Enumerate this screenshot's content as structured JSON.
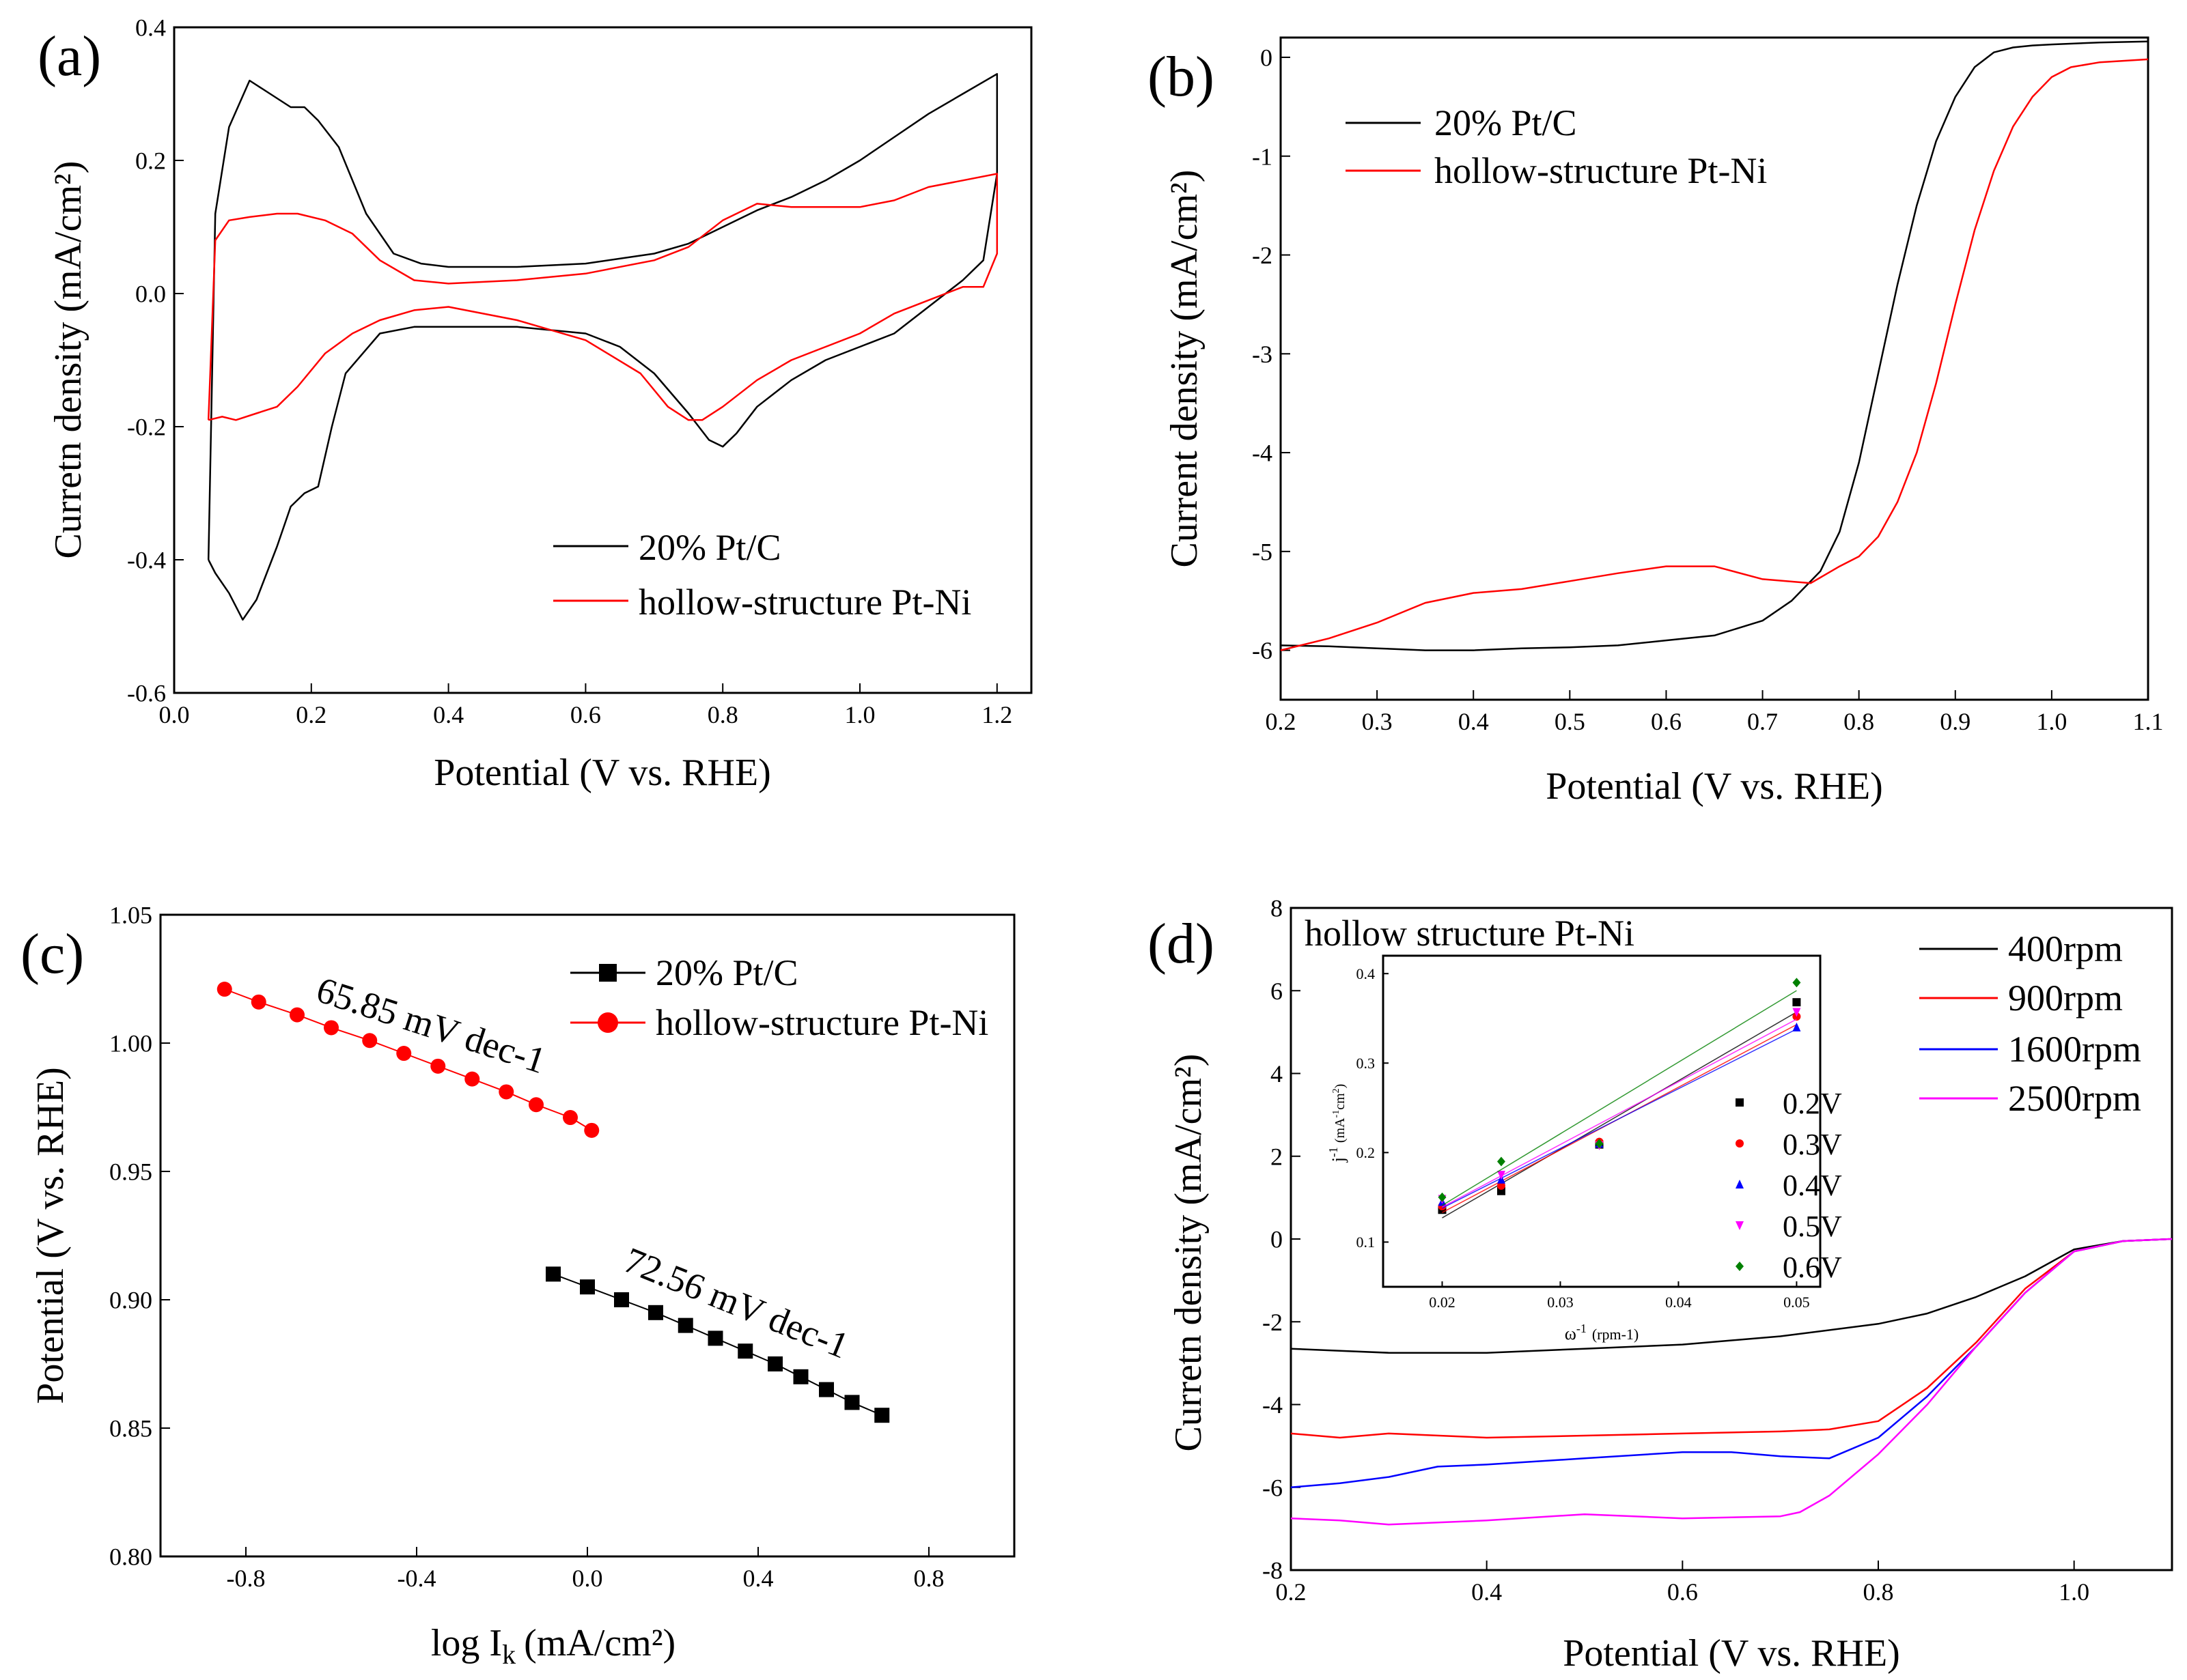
{
  "chart_data": [
    {
      "id": "a",
      "type": "line",
      "panel_label": "(a)",
      "xlabel": "Potential (V vs. RHE)",
      "ylabel": "Curretn density (mA/cm²)",
      "xlim": [
        0.0,
        1.25
      ],
      "ylim": [
        -0.6,
        0.4
      ],
      "xticks": [
        "0.0",
        "0.2",
        "0.4",
        "0.6",
        "0.8",
        "1.0",
        "1.2"
      ],
      "yticks": [
        "-0.6",
        "-0.4",
        "-0.2",
        "0.0",
        "0.2",
        "0.4"
      ],
      "legend": [
        "20% Pt/C",
        "hollow-structure Pt-Ni"
      ],
      "series": [
        {
          "name": "20% Pt/C",
          "color": "#000000",
          "x": [
            0.05,
            0.06,
            0.08,
            0.11,
            0.14,
            0.17,
            0.19,
            0.21,
            0.24,
            0.28,
            0.32,
            0.36,
            0.4,
            0.5,
            0.6,
            0.7,
            0.75,
            0.8,
            0.85,
            0.9,
            0.95,
            1.0,
            1.05,
            1.1,
            1.15,
            1.2,
            1.2,
            1.18,
            1.15,
            1.1,
            1.05,
            1.0,
            0.95,
            0.9,
            0.85,
            0.82,
            0.8,
            0.78,
            0.75,
            0.7,
            0.65,
            0.6,
            0.5,
            0.4,
            0.35,
            0.3,
            0.25,
            0.23,
            0.21,
            0.19,
            0.17,
            0.15,
            0.12,
            0.1,
            0.08,
            0.06,
            0.05
          ],
          "y": [
            -0.4,
            0.12,
            0.25,
            0.32,
            0.3,
            0.28,
            0.28,
            0.26,
            0.22,
            0.12,
            0.06,
            0.045,
            0.04,
            0.04,
            0.045,
            0.06,
            0.075,
            0.1,
            0.125,
            0.145,
            0.17,
            0.2,
            0.235,
            0.27,
            0.3,
            0.33,
            0.18,
            0.05,
            0.02,
            -0.02,
            -0.06,
            -0.08,
            -0.1,
            -0.13,
            -0.17,
            -0.21,
            -0.23,
            -0.22,
            -0.18,
            -0.12,
            -0.08,
            -0.06,
            -0.05,
            -0.05,
            -0.05,
            -0.06,
            -0.12,
            -0.2,
            -0.29,
            -0.3,
            -0.32,
            -0.38,
            -0.46,
            -0.49,
            -0.45,
            -0.42,
            -0.4
          ]
        },
        {
          "name": "hollow-structure Pt-Ni",
          "color": "#ff0000",
          "x": [
            0.05,
            0.06,
            0.08,
            0.11,
            0.15,
            0.18,
            0.22,
            0.26,
            0.3,
            0.35,
            0.4,
            0.5,
            0.6,
            0.7,
            0.75,
            0.8,
            0.85,
            0.9,
            0.95,
            1.0,
            1.05,
            1.1,
            1.15,
            1.2,
            1.2,
            1.18,
            1.15,
            1.1,
            1.05,
            1.0,
            0.95,
            0.9,
            0.85,
            0.8,
            0.77,
            0.75,
            0.72,
            0.68,
            0.6,
            0.5,
            0.4,
            0.35,
            0.3,
            0.26,
            0.22,
            0.18,
            0.15,
            0.12,
            0.09,
            0.07,
            0.05
          ],
          "y": [
            -0.19,
            0.08,
            0.11,
            0.115,
            0.12,
            0.12,
            0.11,
            0.09,
            0.05,
            0.02,
            0.015,
            0.02,
            0.03,
            0.05,
            0.07,
            0.11,
            0.135,
            0.13,
            0.13,
            0.13,
            0.14,
            0.16,
            0.17,
            0.18,
            0.06,
            0.01,
            0.01,
            -0.01,
            -0.03,
            -0.06,
            -0.08,
            -0.1,
            -0.13,
            -0.17,
            -0.19,
            -0.19,
            -0.17,
            -0.12,
            -0.07,
            -0.04,
            -0.02,
            -0.025,
            -0.04,
            -0.06,
            -0.09,
            -0.14,
            -0.17,
            -0.18,
            -0.19,
            -0.185,
            -0.19
          ]
        }
      ]
    },
    {
      "id": "b",
      "type": "line",
      "panel_label": "(b)",
      "xlabel": "Potential (V vs. RHE)",
      "ylabel": "Current density (mA/cm²)",
      "xlim": [
        0.2,
        1.1
      ],
      "ylim": [
        -6.5,
        0.2
      ],
      "xticks": [
        "0.2",
        "0.3",
        "0.4",
        "0.5",
        "0.6",
        "0.7",
        "0.8",
        "0.9",
        "1.0",
        "1.1"
      ],
      "yticks": [
        "0",
        "-1",
        "-2",
        "-3",
        "-4",
        "-5",
        "-6"
      ],
      "legend": [
        "20% Pt/C",
        "hollow-structure Pt-Ni"
      ],
      "series": [
        {
          "name": "20% Pt/C",
          "color": "#000000",
          "x": [
            0.2,
            0.25,
            0.3,
            0.35,
            0.4,
            0.45,
            0.5,
            0.55,
            0.6,
            0.65,
            0.7,
            0.73,
            0.76,
            0.78,
            0.8,
            0.82,
            0.84,
            0.86,
            0.88,
            0.9,
            0.92,
            0.94,
            0.96,
            0.98,
            1.0,
            1.05,
            1.1
          ],
          "y": [
            -5.95,
            -5.96,
            -5.98,
            -6.0,
            -6.0,
            -5.98,
            -5.97,
            -5.95,
            -5.9,
            -5.85,
            -5.7,
            -5.5,
            -5.2,
            -4.8,
            -4.1,
            -3.2,
            -2.3,
            -1.5,
            -0.85,
            -0.4,
            -0.1,
            0.05,
            0.1,
            0.12,
            0.13,
            0.15,
            0.16
          ]
        },
        {
          "name": "hollow-structure Pt-Ni",
          "color": "#ff0000",
          "x": [
            0.2,
            0.25,
            0.3,
            0.35,
            0.4,
            0.45,
            0.5,
            0.55,
            0.6,
            0.65,
            0.7,
            0.75,
            0.78,
            0.8,
            0.82,
            0.84,
            0.86,
            0.88,
            0.9,
            0.92,
            0.94,
            0.96,
            0.98,
            1.0,
            1.02,
            1.05,
            1.1
          ],
          "y": [
            -6.0,
            -5.88,
            -5.72,
            -5.52,
            -5.42,
            -5.38,
            -5.3,
            -5.22,
            -5.15,
            -5.15,
            -5.28,
            -5.32,
            -5.15,
            -5.05,
            -4.85,
            -4.5,
            -4.0,
            -3.3,
            -2.5,
            -1.75,
            -1.15,
            -0.7,
            -0.4,
            -0.2,
            -0.1,
            -0.05,
            -0.02
          ]
        }
      ]
    },
    {
      "id": "c",
      "type": "scatter",
      "panel_label": "(c)",
      "xlabel": "log I",
      "xlabel_sub": "k",
      "xlabel_unit": "(mA/cm²)",
      "ylabel": "Potential (V vs. RHE)",
      "xlim": [
        -1.0,
        1.0
      ],
      "ylim": [
        0.8,
        1.05
      ],
      "xticks": [
        "-0.8",
        "-0.4",
        "0.0",
        "0.4",
        "0.8"
      ],
      "yticks": [
        "0.80",
        "0.85",
        "0.90",
        "0.95",
        "1.00",
        "1.05"
      ],
      "legend": [
        "20% Pt/C",
        "hollow-structure Pt-Ni"
      ],
      "annotations": [
        "65.85 mV dec-1",
        "72.56 mV dec-1"
      ],
      "series": [
        {
          "name": "20% Pt/C",
          "color": "#000000",
          "marker": "square",
          "x": [
            -0.08,
            0.0,
            0.08,
            0.16,
            0.23,
            0.3,
            0.37,
            0.44,
            0.5,
            0.56,
            0.62,
            0.69
          ],
          "y": [
            0.91,
            0.905,
            0.9,
            0.895,
            0.89,
            0.885,
            0.88,
            0.875,
            0.87,
            0.865,
            0.86,
            0.855
          ]
        },
        {
          "name": "hollow-structure Pt-Ni",
          "color": "#ff0000",
          "marker": "circle",
          "x": [
            -0.85,
            -0.77,
            -0.68,
            -0.6,
            -0.51,
            -0.43,
            -0.35,
            -0.27,
            -0.19,
            -0.12,
            -0.04,
            0.01
          ],
          "y": [
            1.021,
            1.016,
            1.011,
            1.006,
            1.001,
            0.996,
            0.991,
            0.986,
            0.981,
            0.976,
            0.971,
            0.966
          ]
        }
      ]
    },
    {
      "id": "d",
      "type": "line",
      "panel_label": "(d)",
      "title": "hollow structure Pt-Ni",
      "xlabel": "Potential (V vs. RHE)",
      "ylabel": "Curretn density (mA/cm²)",
      "xlim": [
        0.2,
        1.1
      ],
      "ylim": [
        -8,
        8
      ],
      "xticks": [
        "0.2",
        "0.4",
        "0.6",
        "0.8",
        "1.0"
      ],
      "yticks": [
        "8",
        "6",
        "4",
        "2",
        "0",
        "-2",
        "-4",
        "-6",
        "-8"
      ],
      "legend": [
        "400rpm",
        "900rpm",
        "1600rpm",
        "2500rpm"
      ],
      "series": [
        {
          "name": "400rpm",
          "color": "#000000",
          "x": [
            0.2,
            0.25,
            0.3,
            0.4,
            0.5,
            0.6,
            0.7,
            0.8,
            0.85,
            0.9,
            0.95,
            1.0,
            1.05,
            1.1
          ],
          "y": [
            -2.65,
            -2.7,
            -2.75,
            -2.75,
            -2.65,
            -2.55,
            -2.35,
            -2.05,
            -1.8,
            -1.4,
            -0.9,
            -0.25,
            -0.05,
            0.0
          ]
        },
        {
          "name": "900rpm",
          "color": "#ff0000",
          "x": [
            0.2,
            0.25,
            0.3,
            0.4,
            0.5,
            0.6,
            0.7,
            0.75,
            0.8,
            0.85,
            0.9,
            0.95,
            1.0,
            1.05,
            1.1
          ],
          "y": [
            -4.7,
            -4.8,
            -4.7,
            -4.8,
            -4.75,
            -4.7,
            -4.65,
            -4.6,
            -4.4,
            -3.6,
            -2.5,
            -1.2,
            -0.3,
            -0.05,
            0.0
          ]
        },
        {
          "name": "1600rpm",
          "color": "#0000ff",
          "x": [
            0.2,
            0.25,
            0.3,
            0.35,
            0.4,
            0.5,
            0.6,
            0.65,
            0.7,
            0.75,
            0.8,
            0.85,
            0.9,
            0.95,
            1.0,
            1.05,
            1.1
          ],
          "y": [
            -6.0,
            -5.9,
            -5.75,
            -5.5,
            -5.45,
            -5.3,
            -5.15,
            -5.15,
            -5.25,
            -5.3,
            -4.8,
            -3.8,
            -2.6,
            -1.3,
            -0.3,
            -0.05,
            0.0
          ]
        },
        {
          "name": "2500rpm",
          "color": "#ff00ff",
          "x": [
            0.2,
            0.25,
            0.3,
            0.4,
            0.5,
            0.6,
            0.7,
            0.72,
            0.75,
            0.8,
            0.85,
            0.9,
            0.95,
            1.0,
            1.05,
            1.1
          ],
          "y": [
            -6.75,
            -6.8,
            -6.9,
            -6.8,
            -6.65,
            -6.75,
            -6.7,
            -6.6,
            -6.2,
            -5.2,
            -4.0,
            -2.6,
            -1.3,
            -0.3,
            -0.05,
            0.0
          ]
        }
      ],
      "inset": {
        "xlabel": "ω",
        "xlabel_sup": "-1",
        "xlabel_unit": "(rpm-1)",
        "ylabel": "j",
        "ylabel_sup": "-1",
        "ylabel_unit": "(mA",
        "ylabel_unit_sup": "-1",
        "ylabel_unit_tail": "cm",
        "ylabel_unit_tail_sup": "2",
        "ylabel_close": ")",
        "xlim": [
          0.015,
          0.052
        ],
        "ylim": [
          0.05,
          0.42
        ],
        "xticks": [
          "0.02",
          "0.03",
          "0.04",
          "0.05"
        ],
        "yticks": [
          "0.1",
          "0.2",
          "0.3",
          "0.4"
        ],
        "x": [
          0.02,
          0.025,
          0.0333,
          0.05
        ],
        "series": [
          {
            "name": "0.2V",
            "color": "#000000",
            "marker": "square",
            "y": [
              0.136,
              0.157,
              0.209,
              0.368
            ],
            "fit": [
              0.127,
              0.357
            ]
          },
          {
            "name": "0.3V",
            "color": "#ff0000",
            "marker": "circle",
            "y": [
              0.14,
              0.163,
              0.212,
              0.352
            ],
            "fit": [
              0.133,
              0.343
            ]
          },
          {
            "name": "0.4V",
            "color": "#0000ff",
            "marker": "triangle",
            "y": [
              0.145,
              0.17,
              0.21,
              0.34
            ],
            "fit": [
              0.138,
              0.338
            ]
          },
          {
            "name": "0.5V",
            "color": "#ff00ff",
            "marker": "triangle-down",
            "y": [
              0.148,
              0.175,
              0.208,
              0.357
            ],
            "fit": [
              0.139,
              0.349
            ]
          },
          {
            "name": "0.6V",
            "color": "#008000",
            "marker": "diamond",
            "y": [
              0.15,
              0.19,
              0.21,
              0.39
            ],
            "fit": [
              0.141,
              0.381
            ]
          }
        ]
      }
    }
  ]
}
